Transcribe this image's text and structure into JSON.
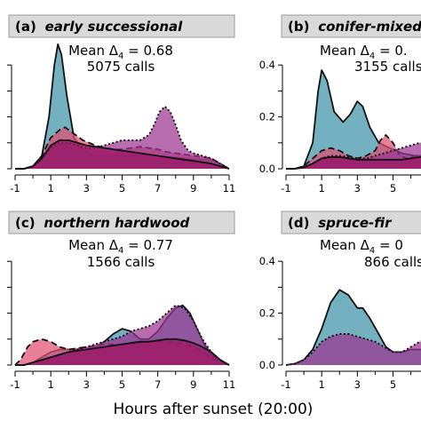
{
  "chart_data": {
    "type": "area",
    "xlabel": "Hours after sunset (20:00)",
    "x_ticks": [
      -1,
      1,
      3,
      5,
      7,
      9,
      11
    ],
    "y_ticks": [
      0.0,
      0.2,
      0.4
    ],
    "y_tick_labels": [
      "0.0",
      "0.2",
      "0.4"
    ],
    "xlim": [
      -1.2,
      11.2
    ],
    "ylim": [
      0,
      0.5
    ],
    "series_colors": [
      "#3f93a8",
      "#e24d72",
      "#9c3590",
      "#9a1862"
    ],
    "panels": [
      {
        "label": "(a)",
        "title": "early successional",
        "mean_prefix": "Mean Δ",
        "mean_sub": "4",
        "mean_value": " = 0.68",
        "calls": "5075 calls",
        "series": [
          {
            "style": "solid",
            "color": "#3f93a8",
            "x": [
              -1,
              -0.5,
              0,
              0.5,
              0.9,
              1.2,
              1.4,
              1.6,
              1.9,
              2.3,
              2.8,
              3.5,
              4.5,
              5.5,
              6.5,
              7.5,
              8.5,
              9.5,
              10.2,
              10.7,
              11
            ],
            "y": [
              0,
              0,
              0.01,
              0.05,
              0.2,
              0.4,
              0.48,
              0.44,
              0.28,
              0.12,
              0.07,
              0.05,
              0.05,
              0.05,
              0.05,
              0.045,
              0.04,
              0.035,
              0.03,
              0.01,
              0
            ]
          },
          {
            "style": "dashed",
            "color": "#e24d72",
            "x": [
              -1,
              -0.5,
              0,
              0.5,
              1,
              1.5,
              1.8,
              2.2,
              2.8,
              3.5,
              4,
              4.5,
              5,
              5.5,
              6,
              6.5,
              7,
              7.5,
              8,
              8.5,
              9,
              9.5,
              10,
              10.5,
              11
            ],
            "y": [
              0,
              0,
              0.01,
              0.05,
              0.12,
              0.15,
              0.16,
              0.14,
              0.11,
              0.09,
              0.08,
              0.075,
              0.075,
              0.08,
              0.085,
              0.08,
              0.075,
              0.065,
              0.06,
              0.055,
              0.05,
              0.045,
              0.04,
              0.02,
              0
            ]
          },
          {
            "style": "dotted",
            "color": "#9c3590",
            "x": [
              -1,
              -0.5,
              0,
              0.5,
              1,
              1.5,
              2,
              2.5,
              3,
              3.5,
              4,
              4.5,
              5,
              5.5,
              6,
              6.5,
              6.8,
              7.1,
              7.4,
              7.7,
              8,
              8.3,
              8.7,
              9,
              9.5,
              10,
              10.5,
              11
            ],
            "y": [
              0,
              0,
              0.01,
              0.04,
              0.08,
              0.1,
              0.1,
              0.09,
              0.08,
              0.08,
              0.09,
              0.1,
              0.11,
              0.11,
              0.11,
              0.13,
              0.17,
              0.22,
              0.24,
              0.22,
              0.17,
              0.11,
              0.07,
              0.06,
              0.05,
              0.04,
              0.02,
              0
            ]
          },
          {
            "style": "solid",
            "color": "#9a1862",
            "x": [
              -1,
              -0.5,
              0,
              0.5,
              1,
              1.5,
              2,
              2.5,
              3,
              3.5,
              4,
              4.5,
              5,
              5.5,
              6,
              6.5,
              7,
              7.5,
              8,
              8.5,
              9,
              9.5,
              10,
              10.5,
              11
            ],
            "y": [
              0,
              0,
              0.01,
              0.04,
              0.09,
              0.11,
              0.11,
              0.1,
              0.09,
              0.085,
              0.08,
              0.075,
              0.07,
              0.065,
              0.06,
              0.055,
              0.05,
              0.045,
              0.04,
              0.035,
              0.03,
              0.025,
              0.02,
              0.01,
              0
            ]
          }
        ]
      },
      {
        "label": "(b)",
        "title": "conifer-mixed",
        "mean_prefix": "Mean Δ",
        "mean_sub": "4",
        "mean_value": " = 0.",
        "calls": "3155 calls",
        "series": [
          {
            "style": "solid",
            "color": "#3f93a8",
            "x": [
              -1,
              -0.5,
              0,
              0.5,
              0.8,
              1,
              1.3,
              1.7,
              2.2,
              2.6,
              3.0,
              3.3,
              3.7,
              4.2,
              4.8,
              5.5,
              6.2,
              7
            ],
            "y": [
              0,
              0,
              0.01,
              0.1,
              0.3,
              0.38,
              0.34,
              0.22,
              0.18,
              0.21,
              0.26,
              0.24,
              0.16,
              0.1,
              0.08,
              0.06,
              0.05,
              0.05
            ]
          },
          {
            "style": "dashed",
            "color": "#e24d72",
            "x": [
              -1,
              -0.5,
              0,
              0.5,
              1,
              1.5,
              2,
              2.5,
              3,
              3.5,
              4,
              4.3,
              4.6,
              5,
              5.4,
              5.8,
              6.2,
              6.6,
              7
            ],
            "y": [
              0,
              0,
              0.01,
              0.04,
              0.07,
              0.08,
              0.07,
              0.05,
              0.04,
              0.05,
              0.07,
              0.11,
              0.13,
              0.1,
              0.05,
              0.04,
              0.05,
              0.05,
              0.05
            ]
          },
          {
            "style": "dotted",
            "color": "#9c3590",
            "x": [
              -1,
              -0.5,
              0,
              0.5,
              1,
              1.5,
              2,
              2.5,
              3,
              3.5,
              4,
              4.5,
              5,
              5.5,
              6,
              6.5,
              7
            ],
            "y": [
              0,
              0,
              0.005,
              0.02,
              0.04,
              0.05,
              0.05,
              0.045,
              0.04,
              0.04,
              0.05,
              0.06,
              0.07,
              0.08,
              0.09,
              0.1,
              0.1
            ]
          },
          {
            "style": "solid",
            "color": "#9a1862",
            "x": [
              -1,
              -0.5,
              0,
              0.5,
              1,
              1.5,
              2,
              2.5,
              3,
              3.5,
              4,
              4.5,
              5,
              5.5,
              6,
              6.5,
              7
            ],
            "y": [
              0,
              0,
              0.005,
              0.02,
              0.04,
              0.045,
              0.045,
              0.04,
              0.035,
              0.035,
              0.035,
              0.035,
              0.035,
              0.035,
              0.04,
              0.045,
              0.05
            ]
          }
        ]
      },
      {
        "label": "(c)",
        "title": "northern hardwood",
        "mean_prefix": "Mean Δ",
        "mean_sub": "4",
        "mean_value": " = 0.77",
        "calls": "1566 calls",
        "series": [
          {
            "style": "solid",
            "color": "#3f93a8",
            "x": [
              -1,
              -0.5,
              0,
              0.5,
              1,
              1.5,
              2,
              2.5,
              3,
              3.5,
              4,
              4.5,
              5,
              5.5,
              6,
              6.5,
              7,
              7.5,
              8,
              8.4,
              8.8,
              9.2,
              9.6,
              10,
              10.5,
              11
            ],
            "y": [
              0,
              0,
              0.01,
              0.03,
              0.05,
              0.06,
              0.06,
              0.06,
              0.06,
              0.07,
              0.09,
              0.12,
              0.14,
              0.13,
              0.1,
              0.1,
              0.13,
              0.18,
              0.22,
              0.23,
              0.2,
              0.14,
              0.08,
              0.04,
              0.02,
              0
            ]
          },
          {
            "style": "dashed",
            "color": "#e24d72",
            "x": [
              -1,
              -0.7,
              -0.3,
              0,
              0.5,
              1,
              1.5,
              2,
              2.5,
              3,
              3.5,
              4,
              4.5,
              5,
              5.5,
              6,
              6.5,
              7,
              7.5,
              8,
              8.5,
              9,
              9.5,
              10,
              10.5,
              11
            ],
            "y": [
              0,
              0.02,
              0.07,
              0.09,
              0.1,
              0.09,
              0.07,
              0.06,
              0.065,
              0.07,
              0.075,
              0.08,
              0.08,
              0.08,
              0.085,
              0.085,
              0.09,
              0.09,
              0.09,
              0.085,
              0.08,
              0.07,
              0.05,
              0.03,
              0.01,
              0
            ]
          },
          {
            "style": "dotted",
            "color": "#9c3590",
            "x": [
              -1,
              -0.5,
              0,
              0.5,
              1,
              1.5,
              2,
              2.5,
              3,
              3.5,
              4,
              4.5,
              5,
              5.5,
              6,
              6.5,
              7,
              7.5,
              8,
              8.5,
              9,
              9.5,
              10,
              10.5,
              11
            ],
            "y": [
              0,
              0,
              0.01,
              0.02,
              0.03,
              0.04,
              0.05,
              0.06,
              0.07,
              0.08,
              0.09,
              0.1,
              0.11,
              0.13,
              0.14,
              0.15,
              0.17,
              0.2,
              0.23,
              0.22,
              0.17,
              0.1,
              0.05,
              0.02,
              0
            ]
          },
          {
            "style": "solid",
            "color": "#9a1862",
            "x": [
              -1,
              -0.5,
              0,
              0.5,
              1,
              1.5,
              2,
              2.5,
              3,
              3.5,
              4,
              4.5,
              5,
              5.5,
              6,
              6.5,
              7,
              7.5,
              8,
              8.5,
              9,
              9.5,
              10,
              10.5,
              11
            ],
            "y": [
              0,
              0,
              0.01,
              0.02,
              0.03,
              0.04,
              0.05,
              0.055,
              0.06,
              0.065,
              0.07,
              0.075,
              0.08,
              0.085,
              0.09,
              0.09,
              0.095,
              0.1,
              0.1,
              0.095,
              0.085,
              0.07,
              0.05,
              0.02,
              0
            ]
          }
        ]
      },
      {
        "label": "(d)",
        "title": "spruce-fir",
        "mean_prefix": "Mean Δ",
        "mean_sub": "4",
        "mean_value": " = 0",
        "calls": "866 calls",
        "series": [
          {
            "style": "solid",
            "color": "#3f93a8",
            "x": [
              -1,
              -0.5,
              0,
              0.5,
              1,
              1.5,
              2,
              2.5,
              3,
              3.3,
              3.7,
              4.2,
              4.6,
              5,
              5.5,
              6,
              6.5,
              7
            ],
            "y": [
              0,
              0.005,
              0.02,
              0.06,
              0.14,
              0.24,
              0.29,
              0.27,
              0.22,
              0.22,
              0.18,
              0.12,
              0.07,
              0.05,
              0.05,
              0.06,
              0.06,
              0.06
            ]
          },
          {
            "style": "dotted",
            "color": "#9c3590",
            "x": [
              -1,
              -0.5,
              0,
              0.5,
              1,
              1.5,
              2,
              2.5,
              3,
              3.5,
              4,
              4.5,
              5,
              5.5,
              6,
              6.5,
              7
            ],
            "y": [
              0,
              0.005,
              0.02,
              0.05,
              0.09,
              0.11,
              0.12,
              0.12,
              0.11,
              0.1,
              0.09,
              0.07,
              0.05,
              0.05,
              0.07,
              0.09,
              0.1
            ]
          }
        ]
      }
    ]
  }
}
